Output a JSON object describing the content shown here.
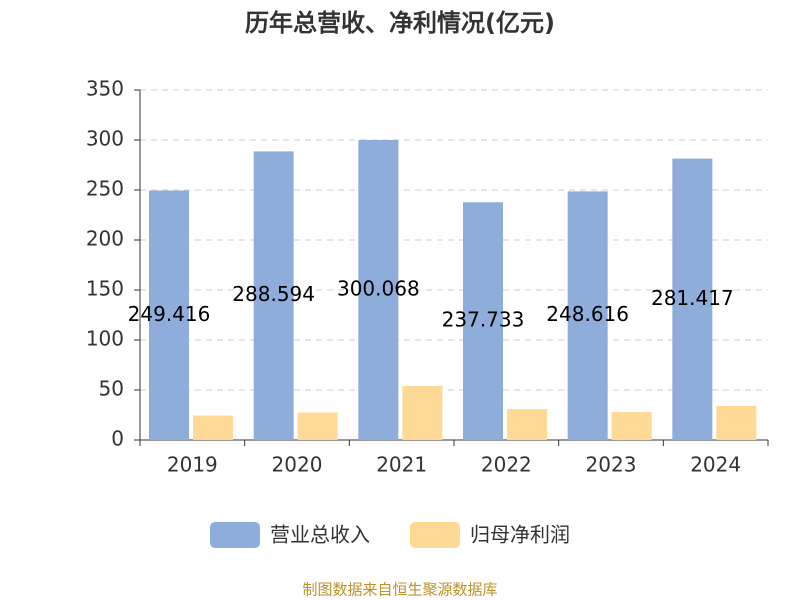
{
  "chart_data": {
    "type": "bar",
    "title": "历年总营收、净利情况(亿元)",
    "categories": [
      "2019",
      "2020",
      "2021",
      "2022",
      "2023",
      "2024"
    ],
    "series": [
      {
        "name": "营业总收入",
        "color": "#8eaddb",
        "values": [
          249.416,
          288.594,
          300.068,
          237.733,
          248.616,
          281.417
        ],
        "show_value_labels": true
      },
      {
        "name": "归母净利润",
        "color": "#ffd996",
        "values": [
          24.5,
          27.5,
          54,
          31,
          28,
          34
        ],
        "show_value_labels": false
      }
    ],
    "ylim": [
      0,
      350
    ],
    "yticks": [
      0,
      50,
      100,
      150,
      200,
      250,
      300,
      350
    ],
    "grid": true,
    "legend": "bottom",
    "source": "制图数据来自恒生聚源数据库"
  }
}
